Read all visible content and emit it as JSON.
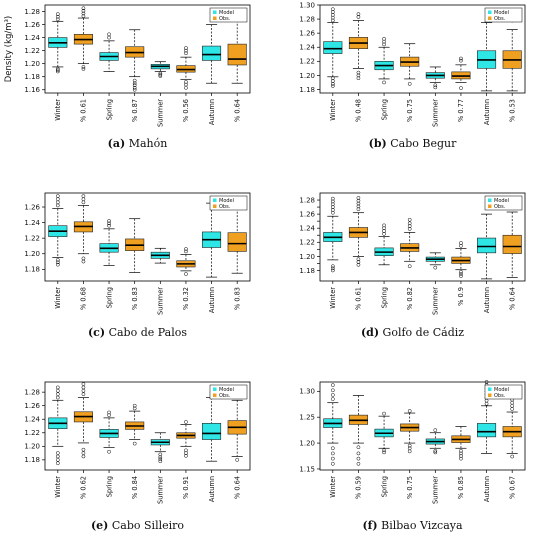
{
  "colors": {
    "model": "#2ee6e6",
    "obs": "#f0a020"
  },
  "legend": {
    "model": "Model",
    "obs": "Obs."
  },
  "chart_data": [
    {
      "type": "boxplot",
      "letter": "(a)",
      "station": "Mahón",
      "ylabel": "Density (kg/m³)",
      "ylim": [
        1.155,
        1.29
      ],
      "yticks": [
        1.16,
        1.18,
        1.2,
        1.22,
        1.24,
        1.26,
        1.28
      ],
      "ytick_labels": [
        "1.16",
        "1.18",
        "1.20",
        "1.22",
        "1.24",
        "1.26",
        "1.28"
      ],
      "categories": [
        "Winter",
        "% 0.61",
        "Spring",
        "% 0.87",
        "Summer",
        "% 0.56",
        "Autumn",
        "% 0.64"
      ],
      "boxes": [
        {
          "series": "Model",
          "whislo": 1.195,
          "q1": 1.225,
          "med": 1.232,
          "q3": 1.24,
          "whishi": 1.265,
          "fliers": [
            1.188,
            1.19,
            1.192,
            1.268,
            1.272,
            1.276
          ]
        },
        {
          "series": "Obs.",
          "whislo": 1.2,
          "q1": 1.23,
          "med": 1.237,
          "q3": 1.245,
          "whishi": 1.27,
          "fliers": [
            1.192,
            1.195,
            1.273,
            1.277,
            1.281,
            1.285
          ]
        },
        {
          "series": "Model",
          "whislo": 1.188,
          "q1": 1.205,
          "med": 1.211,
          "q3": 1.217,
          "whishi": 1.235,
          "fliers": [
            1.24,
            1.245
          ]
        },
        {
          "series": "Obs.",
          "whislo": 1.18,
          "q1": 1.21,
          "med": 1.217,
          "q3": 1.226,
          "whishi": 1.252,
          "fliers": [
            1.16,
            1.163,
            1.167,
            1.17,
            1.174
          ]
        },
        {
          "series": "Model",
          "whislo": 1.188,
          "q1": 1.192,
          "med": 1.196,
          "q3": 1.199,
          "whishi": 1.203,
          "fliers": [
            1.181,
            1.183,
            1.185
          ]
        },
        {
          "series": "Obs.",
          "whislo": 1.176,
          "q1": 1.187,
          "med": 1.191,
          "q3": 1.197,
          "whishi": 1.21,
          "fliers": [
            1.163,
            1.168,
            1.172,
            1.216,
            1.22,
            1.224
          ]
        },
        {
          "series": "Model",
          "whislo": 1.17,
          "q1": 1.205,
          "med": 1.214,
          "q3": 1.227,
          "whishi": 1.26,
          "fliers": []
        },
        {
          "series": "Obs.",
          "whislo": 1.17,
          "q1": 1.198,
          "med": 1.207,
          "q3": 1.23,
          "whishi": 1.272,
          "fliers": []
        }
      ]
    },
    {
      "type": "boxplot",
      "letter": "(b)",
      "station": "Cabo Begur",
      "ylabel": "",
      "ylim": [
        1.175,
        1.3
      ],
      "yticks": [
        1.18,
        1.2,
        1.22,
        1.24,
        1.26,
        1.28,
        1.3
      ],
      "ytick_labels": [
        "1.18",
        "1.20",
        "1.22",
        "1.24",
        "1.26",
        "1.28",
        "1.30"
      ],
      "categories": [
        "Winter",
        "% 0.48",
        "Spring",
        "% 0.75",
        "Summer",
        "% 0.77",
        "Autumn",
        "% 0.53"
      ],
      "boxes": [
        {
          "series": "Model",
          "whislo": 1.198,
          "q1": 1.231,
          "med": 1.238,
          "q3": 1.248,
          "whishi": 1.275,
          "fliers": [
            1.185,
            1.188,
            1.192,
            1.196,
            1.278,
            1.282,
            1.286,
            1.29,
            1.294
          ]
        },
        {
          "series": "Obs.",
          "whislo": 1.21,
          "q1": 1.238,
          "med": 1.246,
          "q3": 1.254,
          "whishi": 1.278,
          "fliers": [
            1.196,
            1.2,
            1.204,
            1.283,
            1.287
          ]
        },
        {
          "series": "Model",
          "whislo": 1.195,
          "q1": 1.208,
          "med": 1.214,
          "q3": 1.22,
          "whishi": 1.24,
          "fliers": [
            1.19,
            1.244,
            1.248,
            1.252
          ]
        },
        {
          "series": "Obs.",
          "whislo": 1.195,
          "q1": 1.213,
          "med": 1.219,
          "q3": 1.226,
          "whishi": 1.245,
          "fliers": [
            1.188
          ]
        },
        {
          "series": "Model",
          "whislo": 1.19,
          "q1": 1.196,
          "med": 1.2,
          "q3": 1.204,
          "whishi": 1.212,
          "fliers": [
            1.183,
            1.186
          ]
        },
        {
          "series": "Obs.",
          "whislo": 1.19,
          "q1": 1.195,
          "med": 1.199,
          "q3": 1.205,
          "whishi": 1.215,
          "fliers": [
            1.182,
            1.221,
            1.224
          ]
        },
        {
          "series": "Model",
          "whislo": 1.178,
          "q1": 1.21,
          "med": 1.222,
          "q3": 1.235,
          "whishi": 1.275,
          "fliers": []
        },
        {
          "series": "Obs.",
          "whislo": 1.178,
          "q1": 1.21,
          "med": 1.222,
          "q3": 1.235,
          "whishi": 1.265,
          "fliers": [
            1.278
          ]
        }
      ]
    },
    {
      "type": "boxplot",
      "letter": "(c)",
      "station": "Cabo de Palos",
      "ylabel": "",
      "ylim": [
        1.165,
        1.278
      ],
      "yticks": [
        1.18,
        1.2,
        1.22,
        1.24,
        1.26
      ],
      "ytick_labels": [
        "1.18",
        "1.20",
        "1.22",
        "1.24",
        "1.26"
      ],
      "categories": [
        "Winter",
        "% 0.68",
        "Spring",
        "% 0.83",
        "Summer",
        "% 0.32",
        "Autumn",
        "% 0.83"
      ],
      "boxes": [
        {
          "series": "Model",
          "whislo": 1.195,
          "q1": 1.222,
          "med": 1.229,
          "q3": 1.236,
          "whishi": 1.258,
          "fliers": [
            1.186,
            1.189,
            1.192,
            1.262,
            1.266,
            1.27,
            1.274
          ]
        },
        {
          "series": "Obs.",
          "whislo": 1.2,
          "q1": 1.228,
          "med": 1.235,
          "q3": 1.241,
          "whishi": 1.262,
          "fliers": [
            1.19,
            1.194,
            1.266,
            1.27,
            1.274
          ]
        },
        {
          "series": "Model",
          "whislo": 1.185,
          "q1": 1.202,
          "med": 1.207,
          "q3": 1.213,
          "whishi": 1.232,
          "fliers": [
            1.236,
            1.239,
            1.242
          ]
        },
        {
          "series": "Obs.",
          "whislo": 1.176,
          "q1": 1.204,
          "med": 1.211,
          "q3": 1.219,
          "whishi": 1.245,
          "fliers": []
        },
        {
          "series": "Model",
          "whislo": 1.188,
          "q1": 1.194,
          "med": 1.198,
          "q3": 1.202,
          "whishi": 1.207,
          "fliers": []
        },
        {
          "series": "Obs.",
          "whislo": 1.178,
          "q1": 1.183,
          "med": 1.187,
          "q3": 1.191,
          "whishi": 1.199,
          "fliers": [
            1.174,
            1.203,
            1.206
          ]
        },
        {
          "series": "Model",
          "whislo": 1.17,
          "q1": 1.208,
          "med": 1.218,
          "q3": 1.228,
          "whishi": 1.265,
          "fliers": []
        },
        {
          "series": "Obs.",
          "whislo": 1.175,
          "q1": 1.203,
          "med": 1.213,
          "q3": 1.227,
          "whishi": 1.263,
          "fliers": [
            1.272
          ]
        }
      ]
    },
    {
      "type": "boxplot",
      "letter": "(d)",
      "station": "Golfo de Cádiz",
      "ylabel": "",
      "ylim": [
        1.165,
        1.29
      ],
      "yticks": [
        1.18,
        1.19,
        1.2,
        1.21,
        1.22,
        1.23,
        1.24,
        1.25,
        1.26,
        1.27,
        1.28
      ],
      "ytick_labels": [
        "1.18",
        "",
        "1.20",
        "",
        "1.22",
        "",
        "1.24",
        "",
        "1.26",
        "",
        "1.28"
      ],
      "categories": [
        "Winter",
        "% 0.61",
        "Spring",
        "% 0.82",
        "Summer",
        "% 0.9",
        "Autumn",
        "% 0.64"
      ],
      "boxes": [
        {
          "series": "Model",
          "whislo": 1.195,
          "q1": 1.221,
          "med": 1.227,
          "q3": 1.234,
          "whishi": 1.257,
          "fliers": [
            1.18,
            1.183,
            1.186,
            1.262,
            1.266,
            1.27,
            1.274,
            1.278,
            1.282
          ]
        },
        {
          "series": "Obs.",
          "whislo": 1.2,
          "q1": 1.227,
          "med": 1.234,
          "q3": 1.241,
          "whishi": 1.262,
          "fliers": [
            1.188,
            1.192,
            1.196,
            1.267,
            1.271,
            1.275,
            1.279,
            1.283
          ]
        },
        {
          "series": "Model",
          "whislo": 1.188,
          "q1": 1.201,
          "med": 1.206,
          "q3": 1.212,
          "whishi": 1.228,
          "fliers": [
            1.232,
            1.236,
            1.24,
            1.244
          ]
        },
        {
          "series": "Obs.",
          "whislo": 1.193,
          "q1": 1.207,
          "med": 1.212,
          "q3": 1.218,
          "whishi": 1.234,
          "fliers": [
            1.186,
            1.239,
            1.243,
            1.247,
            1.252
          ]
        },
        {
          "series": "Model",
          "whislo": 1.188,
          "q1": 1.193,
          "med": 1.196,
          "q3": 1.199,
          "whishi": 1.205,
          "fliers": [
            1.184
          ]
        },
        {
          "series": "Obs.",
          "whislo": 1.181,
          "q1": 1.19,
          "med": 1.194,
          "q3": 1.199,
          "whishi": 1.211,
          "fliers": [
            1.172,
            1.175,
            1.178,
            1.215,
            1.219
          ]
        },
        {
          "series": "Model",
          "whislo": 1.168,
          "q1": 1.205,
          "med": 1.214,
          "q3": 1.226,
          "whishi": 1.26,
          "fliers": []
        },
        {
          "series": "Obs.",
          "whislo": 1.17,
          "q1": 1.204,
          "med": 1.214,
          "q3": 1.23,
          "whishi": 1.263,
          "fliers": []
        }
      ]
    },
    {
      "type": "boxplot",
      "letter": "(e)",
      "station": "Cabo Silleiro",
      "ylabel": "",
      "ylim": [
        1.165,
        1.295
      ],
      "yticks": [
        1.18,
        1.2,
        1.22,
        1.24,
        1.26,
        1.28
      ],
      "ytick_labels": [
        "1.18",
        "1.20",
        "1.22",
        "1.24",
        "1.26",
        "1.28"
      ],
      "categories": [
        "Winter",
        "% 0.62",
        "Spring",
        "% 0.84",
        "Summer",
        "% 0.91",
        "Autumn",
        "% 0.64"
      ],
      "boxes": [
        {
          "series": "Model",
          "whislo": 1.2,
          "q1": 1.226,
          "med": 1.234,
          "q3": 1.242,
          "whishi": 1.268,
          "fliers": [
            1.175,
            1.18,
            1.185,
            1.19,
            1.272,
            1.277,
            1.282,
            1.287
          ]
        },
        {
          "series": "Obs.",
          "whislo": 1.205,
          "q1": 1.236,
          "med": 1.244,
          "q3": 1.251,
          "whishi": 1.272,
          "fliers": [
            1.185,
            1.19,
            1.195,
            1.277,
            1.282,
            1.287,
            1.292
          ]
        },
        {
          "series": "Model",
          "whislo": 1.198,
          "q1": 1.213,
          "med": 1.219,
          "q3": 1.225,
          "whishi": 1.242,
          "fliers": [
            1.192,
            1.246,
            1.25
          ]
        },
        {
          "series": "Obs.",
          "whislo": 1.21,
          "q1": 1.225,
          "med": 1.23,
          "q3": 1.236,
          "whishi": 1.252,
          "fliers": [
            1.204,
            1.256,
            1.26
          ]
        },
        {
          "series": "Model",
          "whislo": 1.192,
          "q1": 1.202,
          "med": 1.206,
          "q3": 1.21,
          "whishi": 1.22,
          "fliers": [
            1.178,
            1.181,
            1.184,
            1.188
          ]
        },
        {
          "series": "Obs.",
          "whislo": 1.2,
          "q1": 1.212,
          "med": 1.216,
          "q3": 1.22,
          "whishi": 1.232,
          "fliers": [
            1.186,
            1.19,
            1.194,
            1.236
          ]
        },
        {
          "series": "Model",
          "whislo": 1.178,
          "q1": 1.21,
          "med": 1.219,
          "q3": 1.234,
          "whishi": 1.272,
          "fliers": [
            1.276,
            1.28
          ]
        },
        {
          "series": "Obs.",
          "whislo": 1.185,
          "q1": 1.218,
          "med": 1.228,
          "q3": 1.238,
          "whishi": 1.268,
          "fliers": [
            1.18
          ]
        }
      ]
    },
    {
      "type": "boxplot",
      "letter": "(f)",
      "station": "Bilbao Vizcaya",
      "ylabel": "",
      "ylim": [
        1.148,
        1.318
      ],
      "yticks": [
        1.15,
        1.2,
        1.25,
        1.3
      ],
      "ytick_labels": [
        "1.15",
        "1.20",
        "1.25",
        "1.30"
      ],
      "categories": [
        "Winter",
        "% 0.59",
        "Spring",
        "% 0.75",
        "Summer",
        "% 0.85",
        "Autumn",
        "% 0.67"
      ],
      "boxes": [
        {
          "series": "Model",
          "whislo": 1.2,
          "q1": 1.23,
          "med": 1.238,
          "q3": 1.247,
          "whishi": 1.278,
          "fliers": [
            1.16,
            1.17,
            1.18,
            1.19,
            1.285,
            1.293,
            1.302,
            1.312
          ]
        },
        {
          "series": "Obs.",
          "whislo": 1.2,
          "q1": 1.236,
          "med": 1.244,
          "q3": 1.254,
          "whishi": 1.292,
          "fliers": [
            1.16,
            1.17,
            1.18,
            1.192
          ]
        },
        {
          "series": "Model",
          "whislo": 1.19,
          "q1": 1.212,
          "med": 1.219,
          "q3": 1.227,
          "whishi": 1.252,
          "fliers": [
            1.182,
            1.186,
            1.257
          ]
        },
        {
          "series": "Obs.",
          "whislo": 1.2,
          "q1": 1.223,
          "med": 1.23,
          "q3": 1.237,
          "whishi": 1.258,
          "fliers": [
            1.184,
            1.19,
            1.195,
            1.262
          ]
        },
        {
          "series": "Model",
          "whislo": 1.19,
          "q1": 1.198,
          "med": 1.203,
          "q3": 1.208,
          "whishi": 1.22,
          "fliers": [
            1.182,
            1.185,
            1.225
          ]
        },
        {
          "series": "Obs.",
          "whislo": 1.19,
          "q1": 1.201,
          "med": 1.207,
          "q3": 1.214,
          "whishi": 1.232,
          "fliers": [
            1.17,
            1.175,
            1.18,
            1.185
          ]
        },
        {
          "series": "Model",
          "whislo": 1.18,
          "q1": 1.212,
          "med": 1.222,
          "q3": 1.238,
          "whishi": 1.272,
          "fliers": [
            1.276,
            1.282,
            1.288,
            1.294,
            1.3,
            1.306,
            1.312,
            1.318
          ]
        },
        {
          "series": "Obs.",
          "whislo": 1.18,
          "q1": 1.212,
          "med": 1.222,
          "q3": 1.232,
          "whishi": 1.26,
          "fliers": [
            1.174,
            1.266,
            1.272,
            1.278,
            1.284,
            1.29
          ]
        }
      ]
    }
  ]
}
